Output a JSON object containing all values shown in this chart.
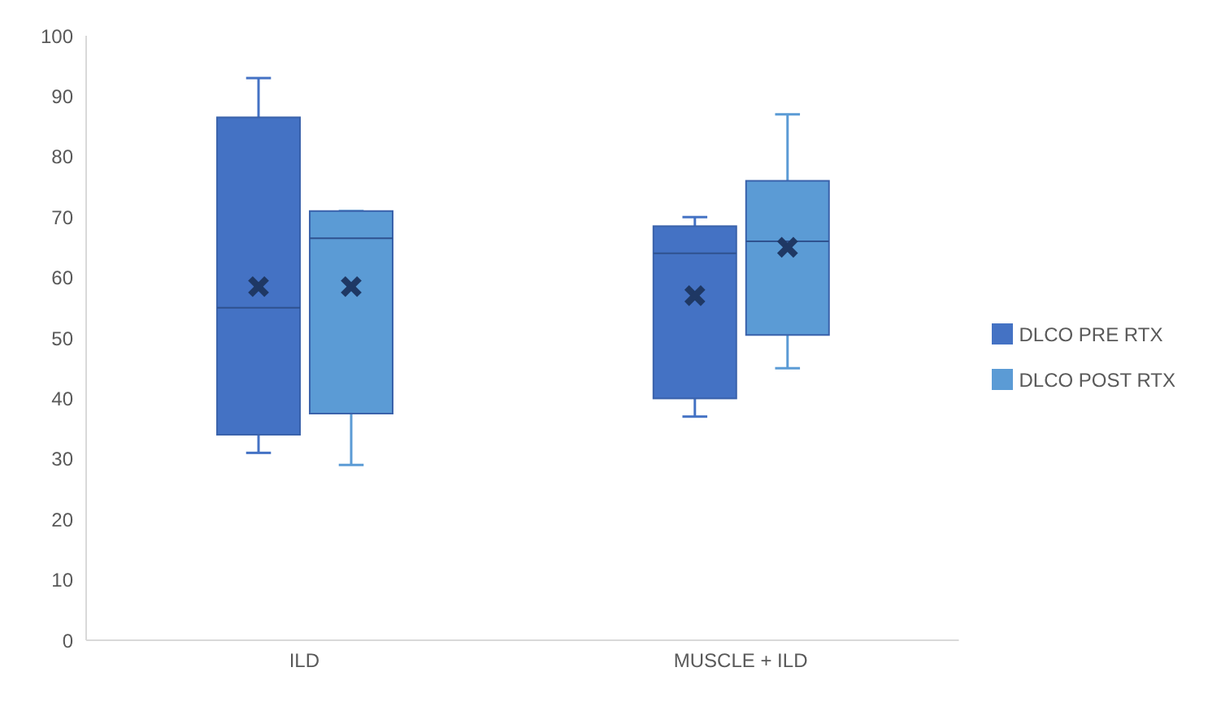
{
  "chart_data": {
    "type": "box",
    "categories": [
      "ILD",
      "MUSCLE + ILD"
    ],
    "series": [
      {
        "name": "DLCO PRE RTX",
        "color": "#4472c4",
        "boxes": [
          {
            "low": 31,
            "q1": 34,
            "median": 55,
            "q3": 86.5,
            "high": 93,
            "mean": 58.5
          },
          {
            "low": 37,
            "q1": 40,
            "median": 64,
            "q3": 68.5,
            "high": 70,
            "mean": 57
          }
        ]
      },
      {
        "name": "DLCO POST RTX",
        "color": "#5b9bd5",
        "boxes": [
          {
            "low": 29,
            "q1": 37.5,
            "median": 66.5,
            "q3": 71,
            "high": 71,
            "mean": 58.5
          },
          {
            "low": 45,
            "q1": 50.5,
            "median": 66,
            "q3": 76,
            "high": 87,
            "mean": 65
          }
        ]
      }
    ],
    "ylim": [
      0,
      100
    ],
    "yticks": [
      0,
      10,
      20,
      30,
      40,
      50,
      60,
      70,
      80,
      90,
      100
    ],
    "grid": false,
    "legend": "right"
  }
}
